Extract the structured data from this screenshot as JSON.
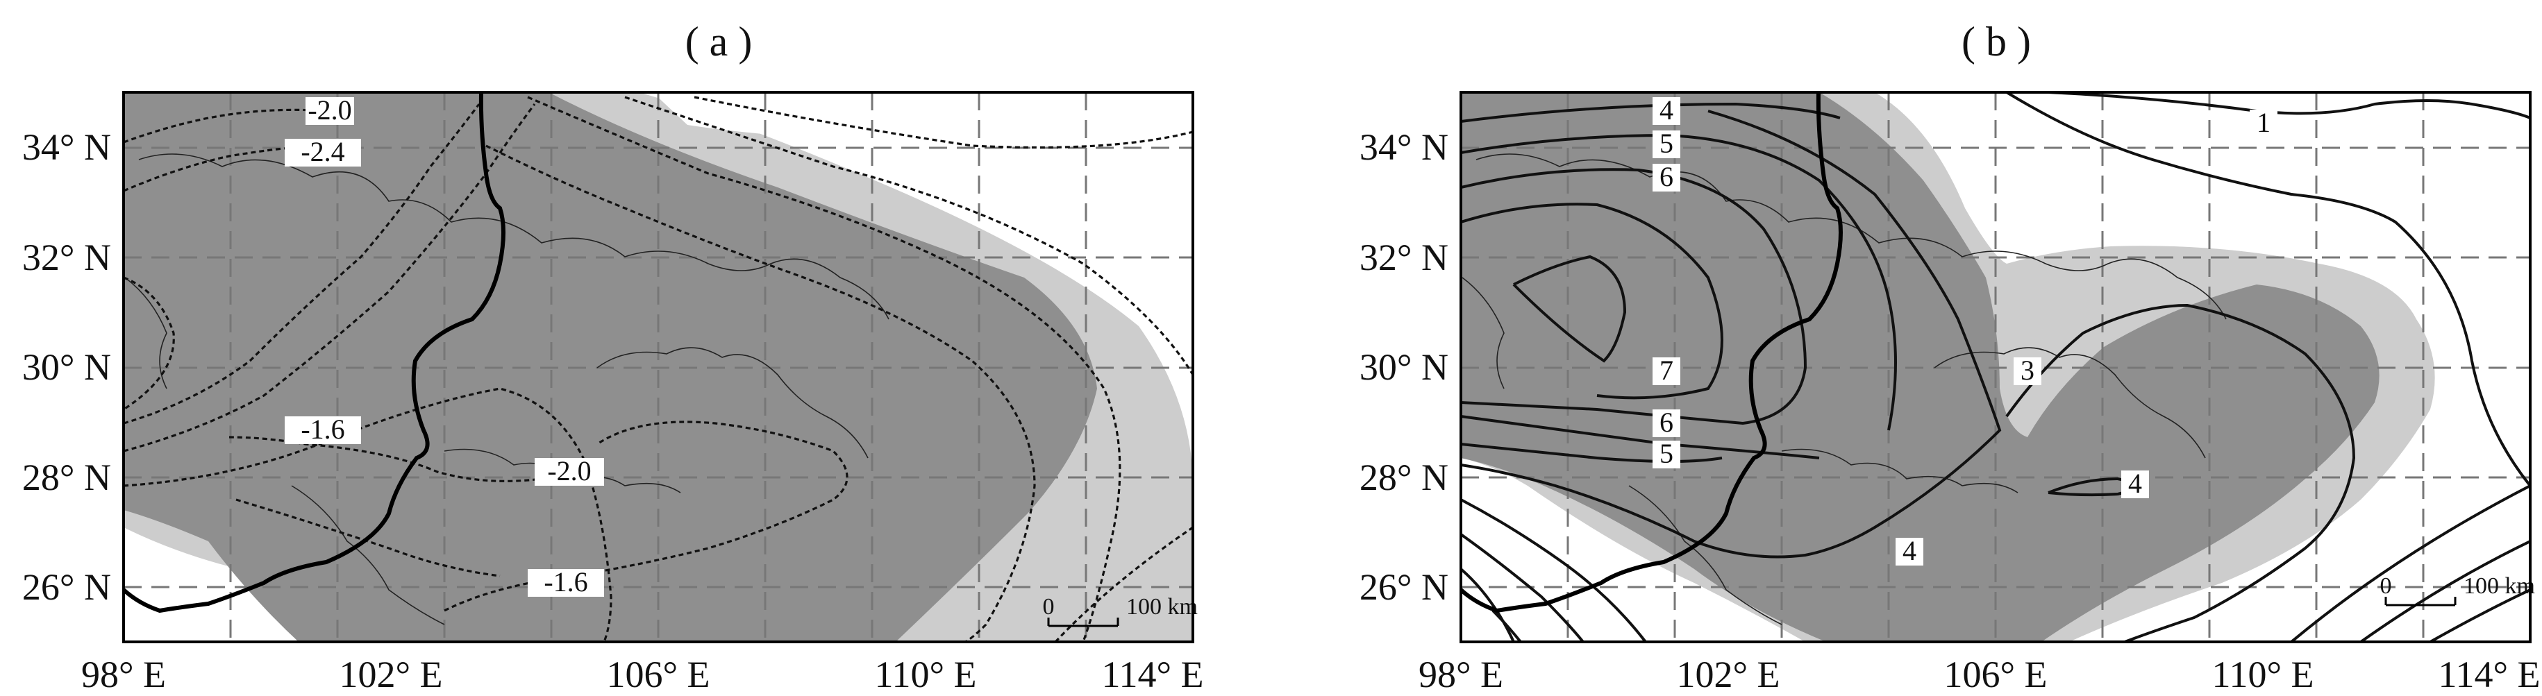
{
  "figure": {
    "panels": [
      {
        "id": "a",
        "title": "( a )",
        "y_ticks": [
          "34° N",
          "32° N",
          "30° N",
          "28° N",
          "26° N"
        ],
        "x_ticks": [
          "98° E",
          "102° E",
          "106° E",
          "110° E",
          "114° E"
        ],
        "contour_labels": [
          "-2.0",
          "-2.4",
          "-1.6",
          "-2.0",
          "-1.6"
        ],
        "scale_bar": {
          "zero": "0",
          "label": "100 km"
        }
      },
      {
        "id": "b",
        "title": "( b )",
        "y_ticks": [
          "34° N",
          "32° N",
          "30° N",
          "28° N",
          "26° N"
        ],
        "x_ticks": [
          "98° E",
          "102° E",
          "106° E",
          "110° E",
          "114° E"
        ],
        "contour_labels": [
          "4",
          "5",
          "6",
          "7",
          "6",
          "5",
          "4",
          "3",
          "1",
          "4"
        ],
        "scale_bar": {
          "zero": "0",
          "label": "100 km"
        }
      }
    ],
    "colors": {
      "dark_shading": "#8f8f8f",
      "light_shading": "#cdcdcd",
      "background": "#ffffff"
    }
  }
}
